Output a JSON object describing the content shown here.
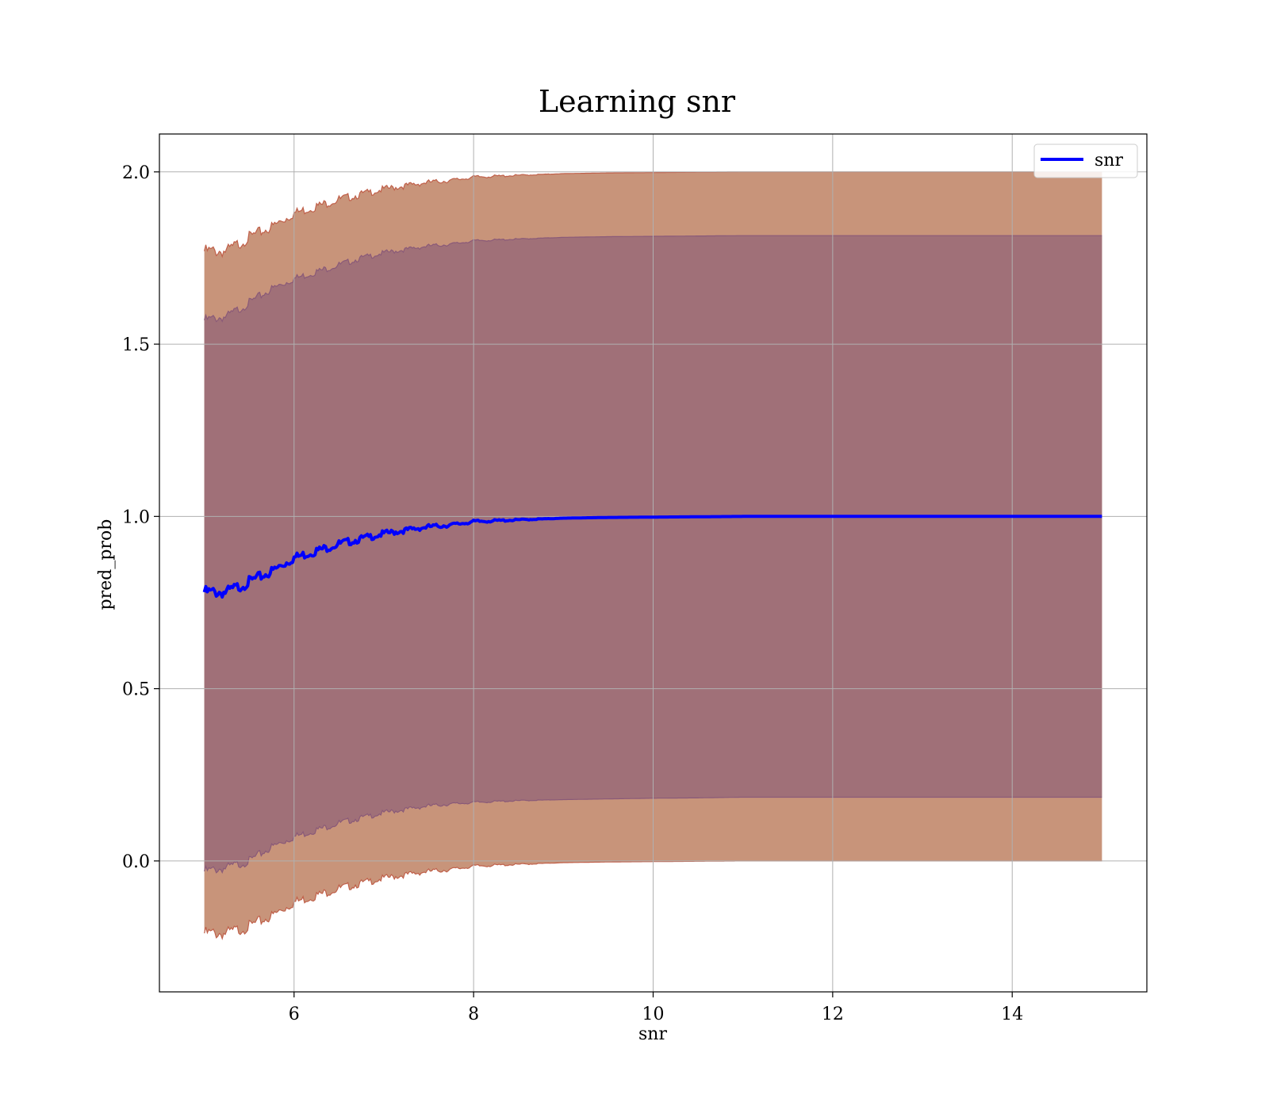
{
  "chart_data": {
    "type": "line",
    "title": "Learning snr",
    "xlabel": "snr",
    "ylabel": "pred_prob",
    "xlim": [
      4.5,
      15.5
    ],
    "ylim": [
      -0.38,
      2.11
    ],
    "xticks": [
      6,
      8,
      10,
      12,
      14
    ],
    "yticks": [
      0.0,
      0.5,
      1.0,
      1.5,
      2.0
    ],
    "xtick_labels": [
      "6",
      "8",
      "10",
      "12",
      "14"
    ],
    "ytick_labels": [
      "0.0",
      "0.5",
      "1.0",
      "1.5",
      "2.0"
    ],
    "grid": true,
    "legend_position": "top-right",
    "colors": {
      "line": "#0000ff",
      "outer_band_fill": "#c8947a",
      "outer_band_edge": "#c0604a",
      "inner_band_fill": "#a07078",
      "inner_band_edge": "#8a5a78"
    },
    "series": [
      {
        "name": "snr",
        "x": [
          5.0,
          5.25,
          5.5,
          5.75,
          6.0,
          6.25,
          6.5,
          6.75,
          7.0,
          7.25,
          7.5,
          7.75,
          8.0,
          8.5,
          9.0,
          9.5,
          10.0,
          10.5,
          11.0,
          12.0,
          13.0,
          14.0,
          15.0
        ],
        "mean": [
          0.78,
          0.78,
          0.81,
          0.84,
          0.88,
          0.9,
          0.92,
          0.935,
          0.95,
          0.96,
          0.97,
          0.975,
          0.985,
          0.99,
          0.995,
          0.997,
          0.998,
          0.999,
          1.0,
          1.0,
          1.0,
          1.0,
          1.0
        ],
        "band_outer_upper": [
          1.77,
          1.77,
          1.81,
          1.84,
          1.88,
          1.9,
          1.92,
          1.935,
          1.95,
          1.96,
          1.97,
          1.975,
          1.985,
          1.99,
          1.995,
          1.997,
          1.998,
          1.999,
          2.0,
          2.0,
          2.0,
          2.0,
          2.0
        ],
        "band_outer_lower": [
          -0.21,
          -0.21,
          -0.19,
          -0.16,
          -0.12,
          -0.1,
          -0.08,
          -0.065,
          -0.05,
          -0.04,
          -0.03,
          -0.025,
          -0.015,
          -0.01,
          -0.005,
          -0.003,
          -0.002,
          -0.001,
          0.0,
          0.0,
          0.0,
          0.0,
          0.0
        ],
        "band_inner_upper": [
          1.57,
          1.58,
          1.62,
          1.66,
          1.69,
          1.71,
          1.73,
          1.75,
          1.765,
          1.775,
          1.785,
          1.79,
          1.8,
          1.805,
          1.81,
          1.812,
          1.813,
          1.814,
          1.815,
          1.815,
          1.815,
          1.815,
          1.815
        ],
        "band_inner_lower": [
          -0.03,
          -0.02,
          0.0,
          0.04,
          0.07,
          0.09,
          0.11,
          0.125,
          0.14,
          0.15,
          0.16,
          0.165,
          0.17,
          0.175,
          0.178,
          0.18,
          0.182,
          0.183,
          0.185,
          0.185,
          0.185,
          0.185,
          0.185
        ]
      }
    ]
  }
}
